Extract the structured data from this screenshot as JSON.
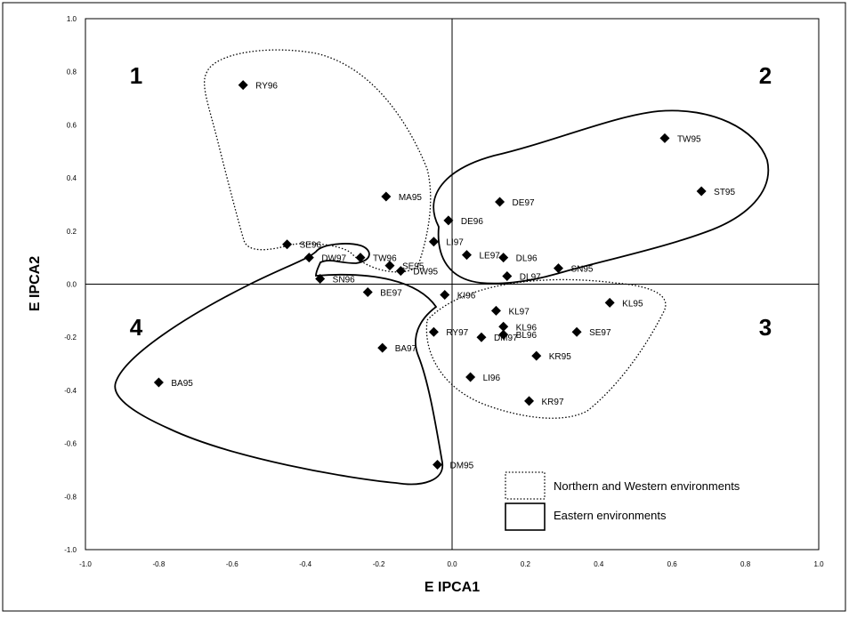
{
  "chart_data": {
    "type": "scatter",
    "title": "",
    "xlabel": "E IPCA1",
    "ylabel": "E IPCA2",
    "xlim": [
      -1.0,
      1.0
    ],
    "ylim": [
      -1.0,
      1.0
    ],
    "x_ticks": [
      "-1.0",
      "-0.8",
      "-0.6",
      "-0.4",
      "-0.2",
      "0.0",
      "0.2",
      "0.4",
      "0.6",
      "0.8",
      "1.0"
    ],
    "y_ticks": [
      "1.0",
      "0.8",
      "0.6",
      "0.4",
      "0.2",
      "0.0",
      "-0.2",
      "-0.4",
      "-0.6",
      "-0.8",
      "-1.0"
    ],
    "grid": false,
    "quadrant_labels": [
      "1",
      "2",
      "3",
      "4"
    ],
    "legend": {
      "position": "bottom-right",
      "items": [
        {
          "label": "Northern and Western environments",
          "style": "dotted"
        },
        {
          "label": "Eastern environments",
          "style": "solid"
        }
      ]
    },
    "points": [
      {
        "label": "RY96",
        "x": -0.57,
        "y": 0.75
      },
      {
        "label": "TW95",
        "x": 0.58,
        "y": 0.55
      },
      {
        "label": "ST95",
        "x": 0.68,
        "y": 0.35
      },
      {
        "label": "MA95",
        "x": -0.18,
        "y": 0.33
      },
      {
        "label": "DE97",
        "x": 0.13,
        "y": 0.31
      },
      {
        "label": "DE96",
        "x": -0.01,
        "y": 0.24
      },
      {
        "label": "SE96",
        "x": -0.45,
        "y": 0.15
      },
      {
        "label": "SE95",
        "x": -0.17,
        "y": 0.07
      },
      {
        "label": "LI97",
        "x": -0.05,
        "y": 0.16
      },
      {
        "label": "LE97",
        "x": 0.04,
        "y": 0.11
      },
      {
        "label": "DL96",
        "x": 0.14,
        "y": 0.1
      },
      {
        "label": "SN95",
        "x": 0.29,
        "y": 0.06
      },
      {
        "label": "DW97",
        "x": -0.39,
        "y": 0.1
      },
      {
        "label": "TW96",
        "x": -0.25,
        "y": 0.1
      },
      {
        "label": "DW95",
        "x": -0.14,
        "y": 0.05
      },
      {
        "label": "DL97",
        "x": 0.15,
        "y": 0.03
      },
      {
        "label": "SN96",
        "x": -0.36,
        "y": 0.02
      },
      {
        "label": "BE97",
        "x": -0.23,
        "y": -0.03
      },
      {
        "label": "KI96",
        "x": -0.02,
        "y": -0.04
      },
      {
        "label": "KL95",
        "x": 0.43,
        "y": -0.07
      },
      {
        "label": "KL97",
        "x": 0.12,
        "y": -0.1
      },
      {
        "label": "KL96",
        "x": 0.14,
        "y": -0.16
      },
      {
        "label": "BL96",
        "x": 0.14,
        "y": -0.19
      },
      {
        "label": "RY97",
        "x": -0.05,
        "y": -0.18
      },
      {
        "label": "DM97",
        "x": 0.08,
        "y": -0.2
      },
      {
        "label": "SE97",
        "x": 0.34,
        "y": -0.18
      },
      {
        "label": "BA97",
        "x": -0.19,
        "y": -0.24
      },
      {
        "label": "KR95",
        "x": 0.23,
        "y": -0.27
      },
      {
        "label": "LI96",
        "x": 0.05,
        "y": -0.35
      },
      {
        "label": "BA95",
        "x": -0.8,
        "y": -0.37
      },
      {
        "label": "KR97",
        "x": 0.21,
        "y": -0.44
      },
      {
        "label": "DM95",
        "x": -0.04,
        "y": -0.68
      }
    ]
  },
  "colors": {
    "marker": "#000000",
    "background": "#ffffff"
  }
}
